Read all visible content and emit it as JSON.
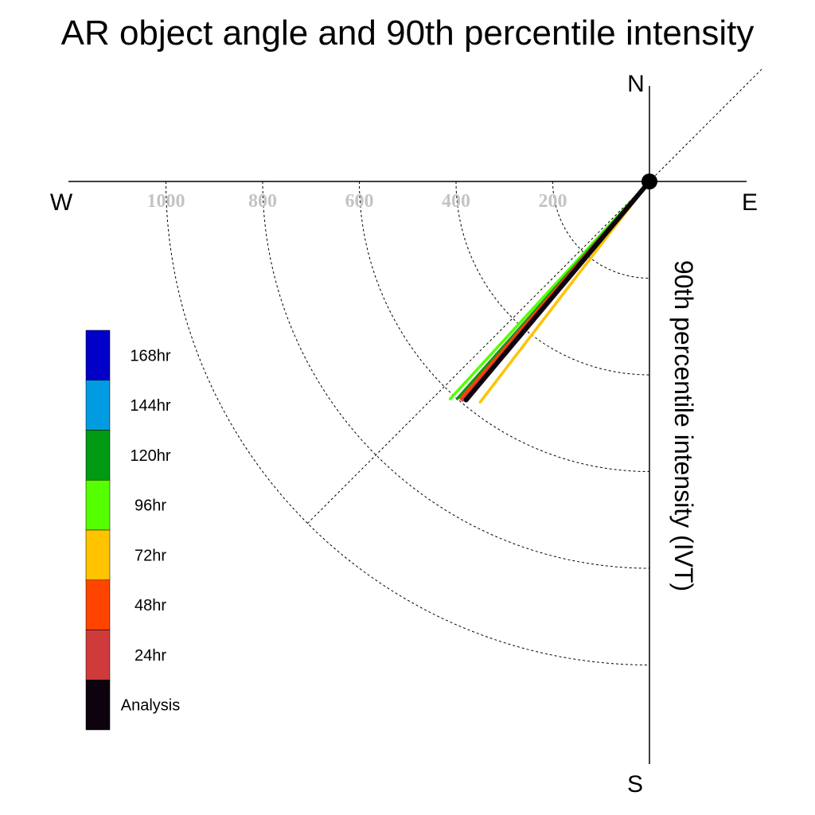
{
  "chart_data": {
    "type": "polar-vector",
    "title": "AR object angle and 90th percentile intensity",
    "radial_axis_label": "90th percentile intensity (IVT)",
    "compass": {
      "north": "N",
      "south": "S",
      "east": "E",
      "west": "W"
    },
    "ring_values": [
      200,
      400,
      600,
      800,
      1000
    ],
    "ring_labels": [
      "200",
      "400",
      "600",
      "800",
      "1000"
    ],
    "angle_guide_deg": 45,
    "series": [
      {
        "name": "72hr",
        "color": "#ffc300",
        "angle_deg": 217.5,
        "intensity": 575
      },
      {
        "name": "96hr",
        "color": "#55ff00",
        "angle_deg": 222.5,
        "intensity": 610
      },
      {
        "name": "120hr",
        "color": "#009a14",
        "angle_deg": 221.5,
        "intensity": 600
      },
      {
        "name": "48hr",
        "color": "#ff4400",
        "angle_deg": 221.0,
        "intensity": 595
      },
      {
        "name": "24hr",
        "color": "#cf3b3b",
        "angle_deg": 220.5,
        "intensity": 595
      },
      {
        "name": "Analysis",
        "color": "#0d020d",
        "angle_deg": 220.0,
        "intensity": 590
      }
    ],
    "legend": [
      {
        "label": "168hr",
        "color": "#0000c8"
      },
      {
        "label": "144hr",
        "color": "#009be0"
      },
      {
        "label": "120hr",
        "color": "#009a14"
      },
      {
        "label": "96hr",
        "color": "#55ff00"
      },
      {
        "label": "72hr",
        "color": "#ffc300"
      },
      {
        "label": "48hr",
        "color": "#ff4400"
      },
      {
        "label": "24hr",
        "color": "#cf3b3b"
      },
      {
        "label": "Analysis",
        "color": "#0d020d"
      }
    ]
  }
}
